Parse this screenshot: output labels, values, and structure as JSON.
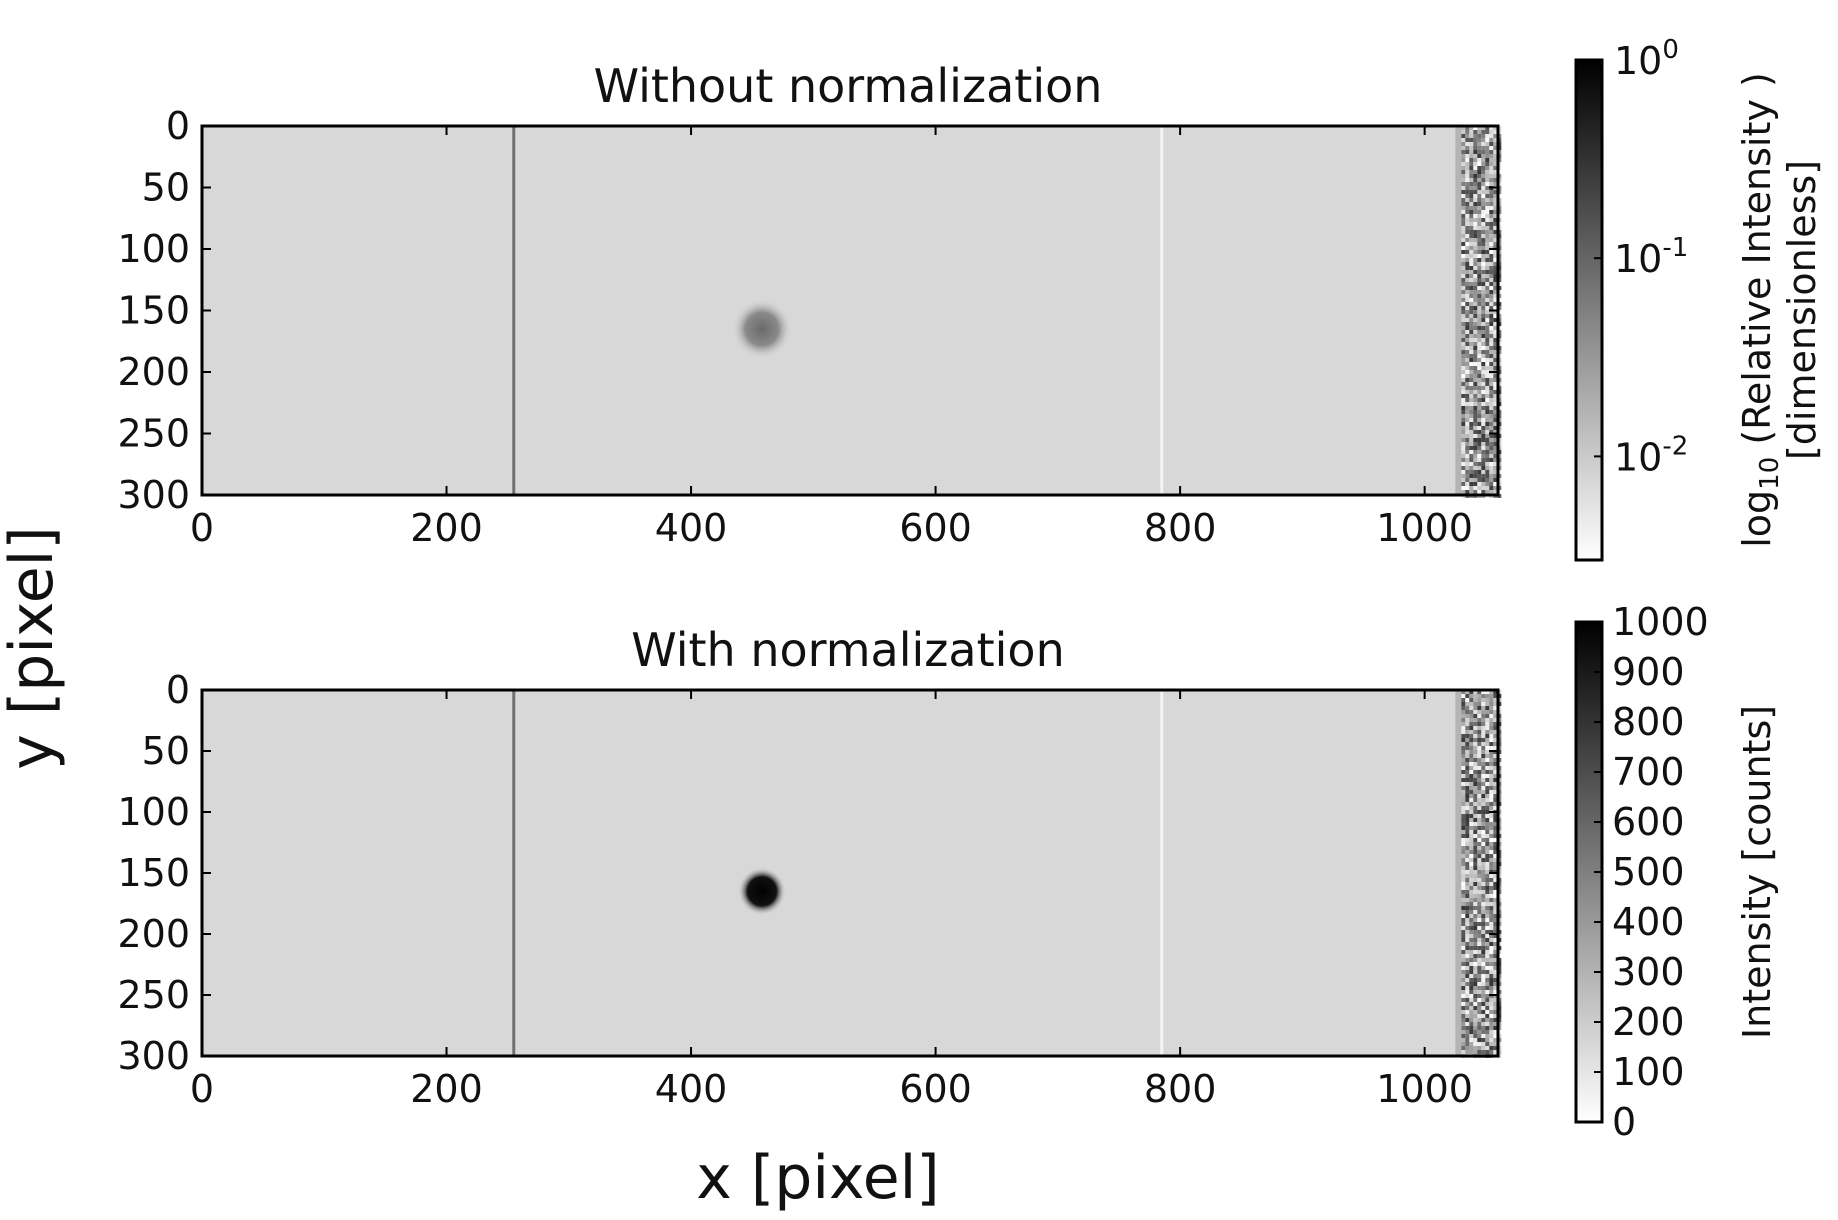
{
  "figure": {
    "xlabel": "x [pixel]",
    "ylabel": "y [pixel]"
  },
  "colors": {
    "background_gray": "#d8d8d8",
    "dark_line": "#707070",
    "bright_line": "#f4f4f4",
    "spot_top": "#6e6e6e",
    "spot_bottom": "#000000"
  },
  "chart_data": [
    {
      "type": "heatmap",
      "title": "Without normalization",
      "xlim": [
        0,
        1060
      ],
      "ylim": [
        300,
        0
      ],
      "xticks": [
        "0",
        "200",
        "400",
        "600",
        "800",
        "1000"
      ],
      "yticks": [
        "0",
        "50",
        "100",
        "150",
        "200",
        "250",
        "300"
      ],
      "features": {
        "dark_column_x": 255,
        "bright_column_x": 785,
        "spot": {
          "x": 458,
          "y": 165
        },
        "noisy_band_x": [
          1030,
          1060
        ]
      },
      "colorbar": {
        "label_line1": "log",
        "label_sub": "10",
        "label_rest": " (Relative Intensity )",
        "label_line2": "[dimensionless]",
        "scale": "log",
        "ticks": [
          {
            "base": "10",
            "exp": "0",
            "value": 1.0
          },
          {
            "base": "10",
            "exp": "-1",
            "value": 0.1
          },
          {
            "base": "10",
            "exp": "-2",
            "value": 0.01
          }
        ]
      }
    },
    {
      "type": "heatmap",
      "title": "With normalization",
      "xlim": [
        0,
        1060
      ],
      "ylim": [
        300,
        0
      ],
      "xticks": [
        "0",
        "200",
        "400",
        "600",
        "800",
        "1000"
      ],
      "yticks": [
        "0",
        "50",
        "100",
        "150",
        "200",
        "250",
        "300"
      ],
      "features": {
        "dark_column_x": 255,
        "bright_column_x": 785,
        "spot": {
          "x": 458,
          "y": 165
        },
        "noisy_band_x": [
          1030,
          1060
        ]
      },
      "colorbar": {
        "label": "Intensity  [counts]",
        "scale": "linear",
        "range": [
          0,
          1000
        ],
        "ticks": [
          "0",
          "100",
          "200",
          "300",
          "400",
          "500",
          "600",
          "700",
          "800",
          "900",
          "1000"
        ]
      }
    }
  ]
}
